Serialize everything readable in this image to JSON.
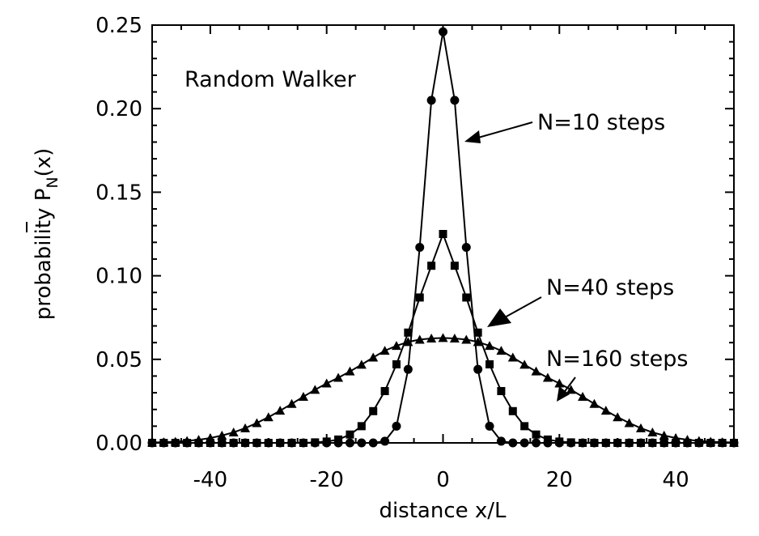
{
  "chart_data": {
    "type": "line",
    "title": "Random Walker",
    "xlabel": "distance x/L",
    "ylabel_main": "probability P",
    "ylabel_sub": "N",
    "ylabel_tail": "(x)",
    "xlim": [
      -50,
      50
    ],
    "ylim": [
      0,
      0.25
    ],
    "xticks": [
      -40,
      -20,
      0,
      20,
      40
    ],
    "xtick_labels": [
      "-40",
      "-20",
      "0",
      "20",
      "40"
    ],
    "yticks": [
      0,
      0.05,
      0.1,
      0.15,
      0.2,
      0.25
    ],
    "ytick_labels": [
      "0.00",
      "0.05",
      "0.10",
      "0.15",
      "0.20",
      "0.25"
    ],
    "grid": false,
    "series": [
      {
        "name": "N=10 steps",
        "marker": "circle",
        "x": [
          -50,
          -48,
          -46,
          -44,
          -42,
          -40,
          -38,
          -36,
          -34,
          -32,
          -30,
          -28,
          -26,
          -24,
          -22,
          -20,
          -18,
          -16,
          -14,
          -12,
          -10,
          -8,
          -6,
          -4,
          -2,
          0,
          2,
          4,
          6,
          8,
          10,
          12,
          14,
          16,
          18,
          20,
          22,
          24,
          26,
          28,
          30,
          32,
          34,
          36,
          38,
          40,
          42,
          44,
          46,
          48,
          50
        ],
        "y": [
          0,
          0,
          0,
          0,
          0,
          0,
          0,
          0,
          0,
          0,
          0,
          0,
          0,
          0,
          0,
          0,
          0,
          0,
          0,
          0,
          0.001,
          0.01,
          0.044,
          0.117,
          0.205,
          0.246,
          0.205,
          0.117,
          0.044,
          0.01,
          0.001,
          0,
          0,
          0,
          0,
          0,
          0,
          0,
          0,
          0,
          0,
          0,
          0,
          0,
          0,
          0,
          0,
          0,
          0,
          0,
          0
        ]
      },
      {
        "name": "N=40 steps",
        "marker": "square",
        "x": [
          -50,
          -48,
          -46,
          -44,
          -42,
          -40,
          -38,
          -36,
          -34,
          -32,
          -30,
          -28,
          -26,
          -24,
          -22,
          -20,
          -18,
          -16,
          -14,
          -12,
          -10,
          -8,
          -6,
          -4,
          -2,
          0,
          2,
          4,
          6,
          8,
          10,
          12,
          14,
          16,
          18,
          20,
          22,
          24,
          26,
          28,
          30,
          32,
          34,
          36,
          38,
          40,
          42,
          44,
          46,
          48,
          50
        ],
        "y": [
          0,
          0,
          0,
          0,
          0,
          0,
          0,
          0,
          0,
          0,
          0,
          0,
          0,
          0,
          0.0003,
          0.0008,
          0.002,
          0.005,
          0.01,
          0.019,
          0.031,
          0.047,
          0.066,
          0.087,
          0.106,
          0.125,
          0.106,
          0.087,
          0.066,
          0.047,
          0.031,
          0.019,
          0.01,
          0.005,
          0.002,
          0.0008,
          0.0003,
          0,
          0,
          0,
          0,
          0,
          0,
          0,
          0,
          0,
          0,
          0,
          0,
          0,
          0
        ]
      },
      {
        "name": "N=160 steps",
        "marker": "triangle",
        "x": [
          -50,
          -48,
          -46,
          -44,
          -42,
          -40,
          -38,
          -36,
          -34,
          -32,
          -30,
          -28,
          -26,
          -24,
          -22,
          -20,
          -18,
          -16,
          -14,
          -12,
          -10,
          -8,
          -6,
          -4,
          -2,
          0,
          2,
          4,
          6,
          8,
          10,
          12,
          14,
          16,
          18,
          20,
          22,
          24,
          26,
          28,
          30,
          32,
          34,
          36,
          38,
          40,
          42,
          44,
          46,
          48,
          50
        ],
        "y": [
          0.00025,
          0.00045,
          0.00075,
          0.0012,
          0.0019,
          0.0029,
          0.0044,
          0.0063,
          0.0088,
          0.0119,
          0.0154,
          0.0193,
          0.0234,
          0.0276,
          0.0318,
          0.0356,
          0.039,
          0.0428,
          0.0468,
          0.0511,
          0.0552,
          0.0581,
          0.0604,
          0.0618,
          0.0625,
          0.0628,
          0.0625,
          0.0618,
          0.0604,
          0.0581,
          0.0552,
          0.0511,
          0.0468,
          0.0428,
          0.039,
          0.0356,
          0.0318,
          0.0276,
          0.0234,
          0.0193,
          0.0154,
          0.0119,
          0.0088,
          0.0063,
          0.0044,
          0.0029,
          0.0019,
          0.0012,
          0.00075,
          0.00045,
          0.00025
        ]
      }
    ],
    "annotations": [
      {
        "text": "Random Walker"
      },
      {
        "text": "N=10 steps"
      },
      {
        "text": "N=40 steps"
      },
      {
        "text": "N=160 steps"
      }
    ]
  }
}
